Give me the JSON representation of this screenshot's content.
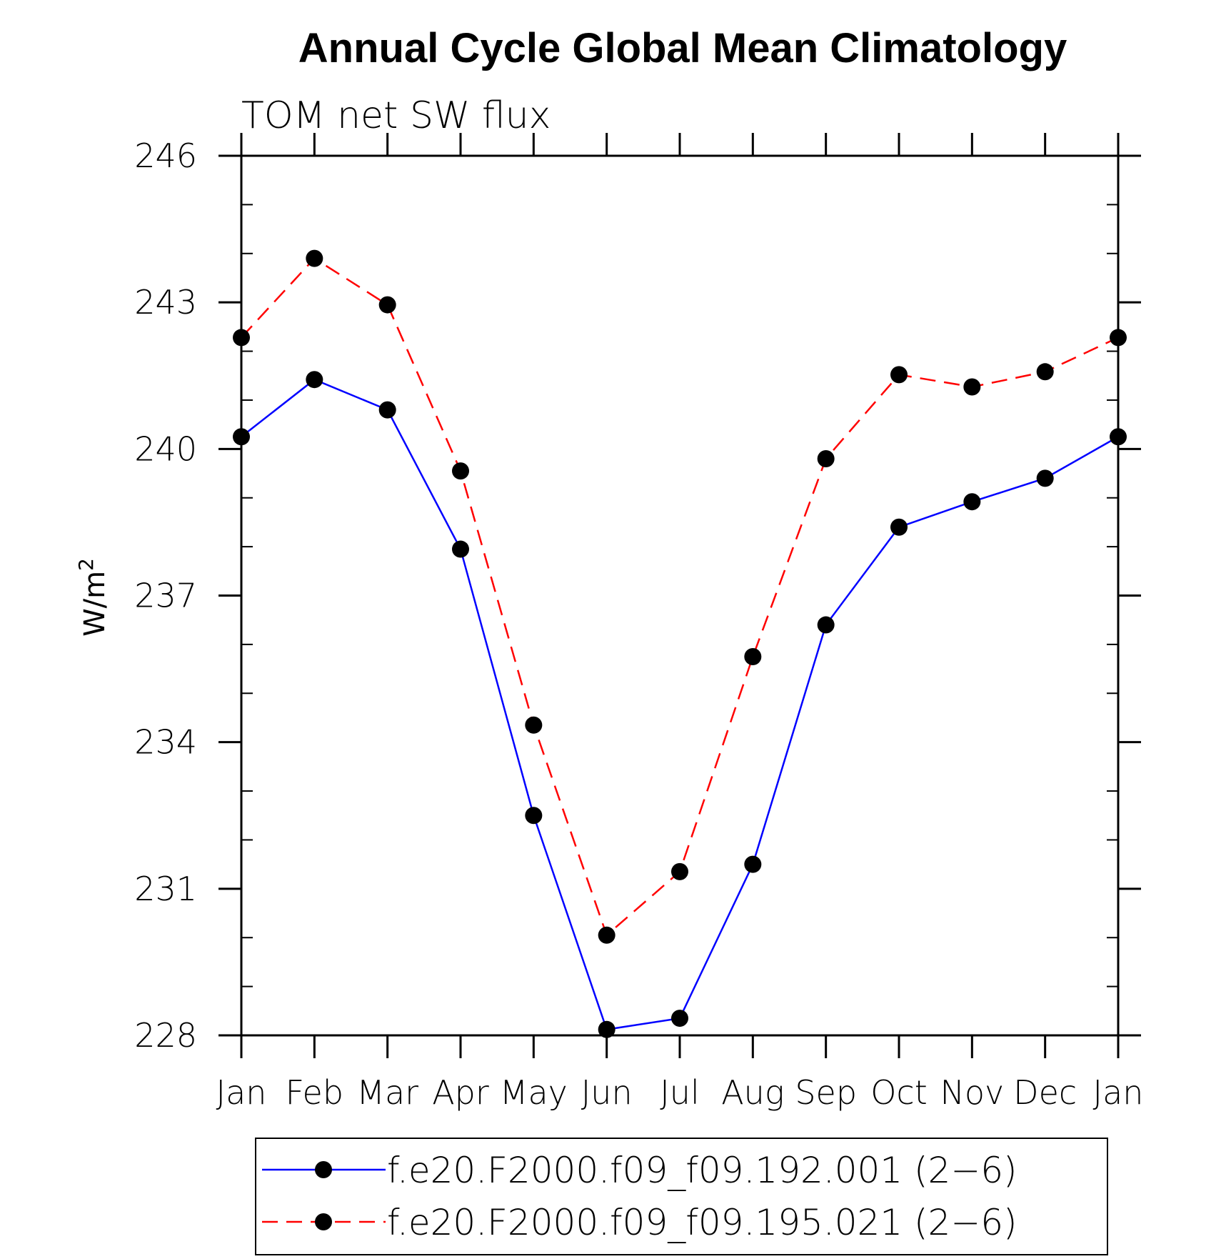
{
  "chart_data": {
    "type": "line",
    "title": "Annual Cycle Global Mean Climatology",
    "subtitle": "TOM net SW flux",
    "ylabel": "W/m",
    "ylabel_superscript": "2",
    "xlabel": "",
    "categories": [
      "Jan",
      "Feb",
      "Mar",
      "Apr",
      "May",
      "Jun",
      "Jul",
      "Aug",
      "Sep",
      "Oct",
      "Nov",
      "Dec",
      "Jan"
    ],
    "ylim": [
      228,
      246
    ],
    "yticks": [
      228,
      231,
      234,
      237,
      240,
      243,
      246
    ],
    "grid": false,
    "legend_position": "bottom",
    "series": [
      {
        "name": "f.e20.F2000.f09_f09.192.001 (2−6)",
        "color": "#0000ff",
        "line_style": "solid",
        "marker": "filled-circle",
        "values": [
          240.25,
          241.42,
          240.8,
          237.95,
          232.5,
          228.12,
          228.35,
          231.5,
          236.4,
          238.4,
          238.92,
          239.4,
          240.25
        ]
      },
      {
        "name": "f.e20.F2000.f09_f09.195.021 (2−6)",
        "color": "#ff0000",
        "line_style": "dashed",
        "marker": "filled-circle",
        "values": [
          242.28,
          243.9,
          242.95,
          239.55,
          234.35,
          230.05,
          231.35,
          235.75,
          239.8,
          241.52,
          241.27,
          241.58,
          242.28
        ]
      }
    ]
  }
}
